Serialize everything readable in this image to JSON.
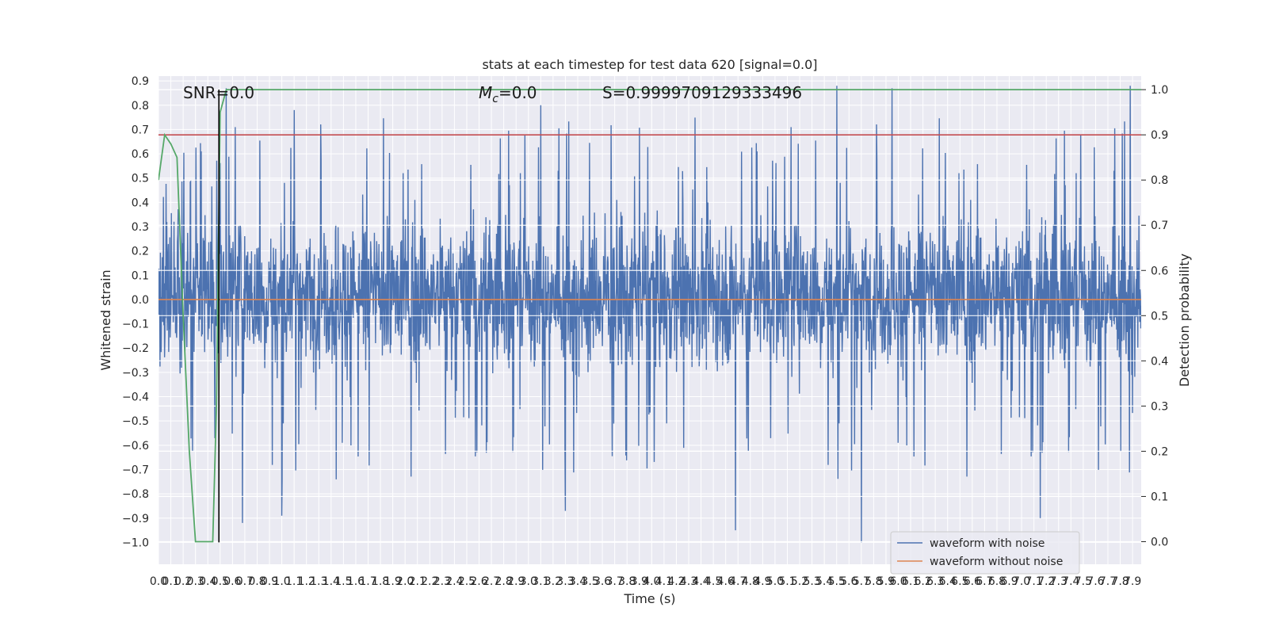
{
  "chart_data": {
    "type": "line",
    "title": "stats at each timestep for test data 620 [signal=0.0]",
    "xlabel": "Time (s)",
    "ylabel": "Whitened strain",
    "y2label": "Detection probability",
    "xlim": [
      0.0,
      7.97
    ],
    "ylim": [
      -1.09,
      0.92
    ],
    "y2lim": [
      -0.05,
      1.03
    ],
    "x_ticks": [
      0.0,
      0.1,
      0.2,
      0.3,
      0.4,
      0.5,
      0.6,
      0.7,
      0.8,
      0.9,
      1.0,
      1.1,
      1.2,
      1.3,
      1.4,
      1.5,
      1.6,
      1.7,
      1.8,
      1.9,
      2.0,
      2.1,
      2.2,
      2.3,
      2.4,
      2.5,
      2.6,
      2.7,
      2.8,
      2.9,
      3.0,
      3.1,
      3.2,
      3.3,
      3.4,
      3.5,
      3.6,
      3.7,
      3.8,
      3.9,
      4.0,
      4.1,
      4.2,
      4.3,
      4.4,
      4.5,
      4.6,
      4.7,
      4.8,
      4.9,
      5.0,
      5.1,
      5.2,
      5.3,
      5.4,
      5.5,
      5.6,
      5.7,
      5.8,
      5.9,
      6.0,
      6.1,
      6.2,
      6.3,
      6.4,
      6.5,
      6.6,
      6.7,
      6.8,
      6.9,
      7.0,
      7.1,
      7.2,
      7.3,
      7.4,
      7.5,
      7.6,
      7.7,
      7.8,
      7.9
    ],
    "x_tick_labels": [
      "0.0",
      "0.1",
      "0.2",
      "0.3",
      "0.4",
      "0.5",
      "0.6",
      "0.7",
      "0.8",
      "0.9",
      "1.0",
      "1.1",
      "1.2",
      "1.3",
      "1.4",
      "1.5",
      "1.6",
      "1.7",
      "1.8",
      "1.9",
      "2.0",
      "2.1",
      "2.2",
      "2.3",
      "2.4",
      "2.5",
      "2.6",
      "2.7",
      "2.8",
      "2.9",
      "3.0",
      "3.1",
      "3.2",
      "3.3",
      "3.4",
      "3.5",
      "3.6",
      "3.7",
      "3.8",
      "3.9",
      "4.0",
      "4.1",
      "4.2",
      "4.3",
      "4.4",
      "4.5",
      "4.6",
      "4.7",
      "4.8",
      "4.9",
      "5.0",
      "5.1",
      "5.2",
      "5.3",
      "5.4",
      "5.5",
      "5.6",
      "5.7",
      "5.8",
      "5.9",
      "6.0",
      "6.1",
      "6.2",
      "6.3",
      "6.4",
      "6.5",
      "6.6",
      "6.7",
      "6.8",
      "6.9",
      "7.0",
      "7.1",
      "7.2",
      "7.3",
      "7.4",
      "7.5",
      "7.6",
      "7.7",
      "7.8",
      "7.9"
    ],
    "y_ticks": [
      0.9,
      0.8,
      0.7,
      0.6,
      0.5,
      0.4,
      0.3,
      0.2,
      0.1,
      0.0,
      -0.1,
      -0.2,
      -0.3,
      -0.4,
      -0.5,
      -0.6,
      -0.7,
      -0.8,
      -0.9,
      -1.0
    ],
    "y_tick_labels": [
      "0.9",
      "0.8",
      "0.7",
      "0.6",
      "0.5",
      "0.4",
      "0.3",
      "0.2",
      "0.1",
      "0.0",
      "−0.1",
      "−0.2",
      "−0.3",
      "−0.4",
      "−0.5",
      "−0.6",
      "−0.7",
      "−0.8",
      "−0.9",
      "−1.0"
    ],
    "y2_ticks": [
      1.0,
      0.9,
      0.8,
      0.7,
      0.6,
      0.5,
      0.4,
      0.3,
      0.2,
      0.1,
      0.0
    ],
    "y2_tick_labels": [
      "1.0",
      "0.9",
      "0.8",
      "0.7",
      "0.6",
      "0.5",
      "0.4",
      "0.3",
      "0.2",
      "0.1",
      "0.0"
    ],
    "grid": true,
    "legend_position": "bottom-right",
    "series": [
      {
        "name": "waveform with noise",
        "color": "#4c72b0",
        "axis": "left",
        "description_values": "dense noise spanning roughly -1.0 to 0.88; core band -0.25 to 0.30",
        "spikes": [
          {
            "x": 0.55,
            "y": 0.87
          },
          {
            "x": 1.1,
            "y": 0.78
          },
          {
            "x": 3.1,
            "y": 0.8
          },
          {
            "x": 5.5,
            "y": 0.88
          },
          {
            "x": 5.95,
            "y": 0.87
          },
          {
            "x": 7.88,
            "y": 0.88
          },
          {
            "x": 5.7,
            "y": -1.0
          },
          {
            "x": 4.68,
            "y": -0.95
          },
          {
            "x": 7.15,
            "y": -0.9
          },
          {
            "x": 0.68,
            "y": -0.92
          },
          {
            "x": 1.0,
            "y": -0.89
          },
          {
            "x": 3.3,
            "y": -0.87
          }
        ]
      },
      {
        "name": "waveform without noise",
        "color": "#dd8452",
        "axis": "left",
        "x": [
          0.0,
          7.97
        ],
        "y": [
          0.0,
          0.0
        ]
      },
      {
        "name": "detection probability",
        "color": "#55a868",
        "axis": "right",
        "x": [
          0.0,
          0.05,
          0.1,
          0.15,
          0.2,
          0.25,
          0.3,
          0.35,
          0.4,
          0.44,
          0.47,
          0.5,
          0.55,
          7.97
        ],
        "y": [
          0.8,
          0.9,
          0.88,
          0.85,
          0.5,
          0.2,
          0.0,
          0.0,
          0.0,
          0.0,
          0.3,
          0.95,
          1.0,
          1.0
        ]
      }
    ],
    "reference_lines": [
      {
        "axis": "right",
        "orientation": "horizontal",
        "value": 0.9,
        "color": "#c44e52"
      },
      {
        "axis": "left",
        "orientation": "vertical",
        "value": 0.49,
        "color": "#000000"
      }
    ],
    "annotations": [
      {
        "text": "SNR=0.0",
        "x": 0.2
      },
      {
        "text_main": "M",
        "text_sub": "c",
        "text_rest": "=0.0",
        "x": 2.6
      },
      {
        "text": "S=0.9999709129333496",
        "x": 3.6
      }
    ]
  }
}
